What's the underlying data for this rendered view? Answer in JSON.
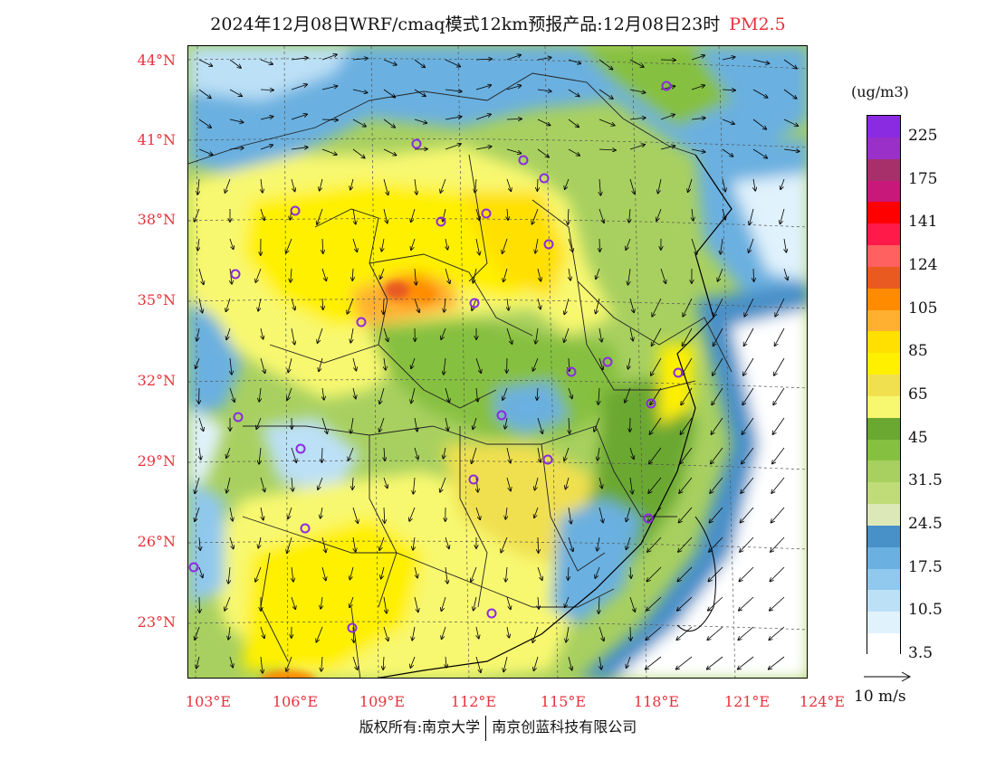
{
  "title": {
    "main": "2024年12月08日WRF/cmaq模式12km预报产品:12月08日23时",
    "pollutant": "PM2.5"
  },
  "lat_labels": [
    "44°N",
    "41°N",
    "38°N",
    "35°N",
    "32°N",
    "29°N",
    "26°N",
    "23°N"
  ],
  "lon_labels": [
    "103°E",
    "106°E",
    "109°E",
    "112°E",
    "115°E",
    "118°E",
    "121°E",
    "124°E"
  ],
  "colorbar": {
    "unit": "(ug/m3)",
    "labels": [
      "225",
      "175",
      "141",
      "124",
      "105",
      "85",
      "65",
      "45",
      "31.5",
      "24.5",
      "17.5",
      "10.5",
      "3.5"
    ],
    "colors": [
      "#8a2be2",
      "#9b30c8",
      "#a8306a",
      "#c8187a",
      "#ff0000",
      "#ff1a4a",
      "#ff6060",
      "#e85a20",
      "#ff8c00",
      "#ffb030",
      "#ffe000",
      "#fff000",
      "#f0e050",
      "#f8f870",
      "#6aa832",
      "#86c040",
      "#a8d060",
      "#c0dc78",
      "#dce8b8",
      "#4890c8",
      "#6ab0e0",
      "#90c8ee",
      "#bce0f6",
      "#e0f2fc",
      "#ffffff"
    ]
  },
  "wind_scale": {
    "label": "10 m/s"
  },
  "footer": {
    "left": "版权所有:南京大学",
    "right": "南京创蓝科技有限公司"
  }
}
